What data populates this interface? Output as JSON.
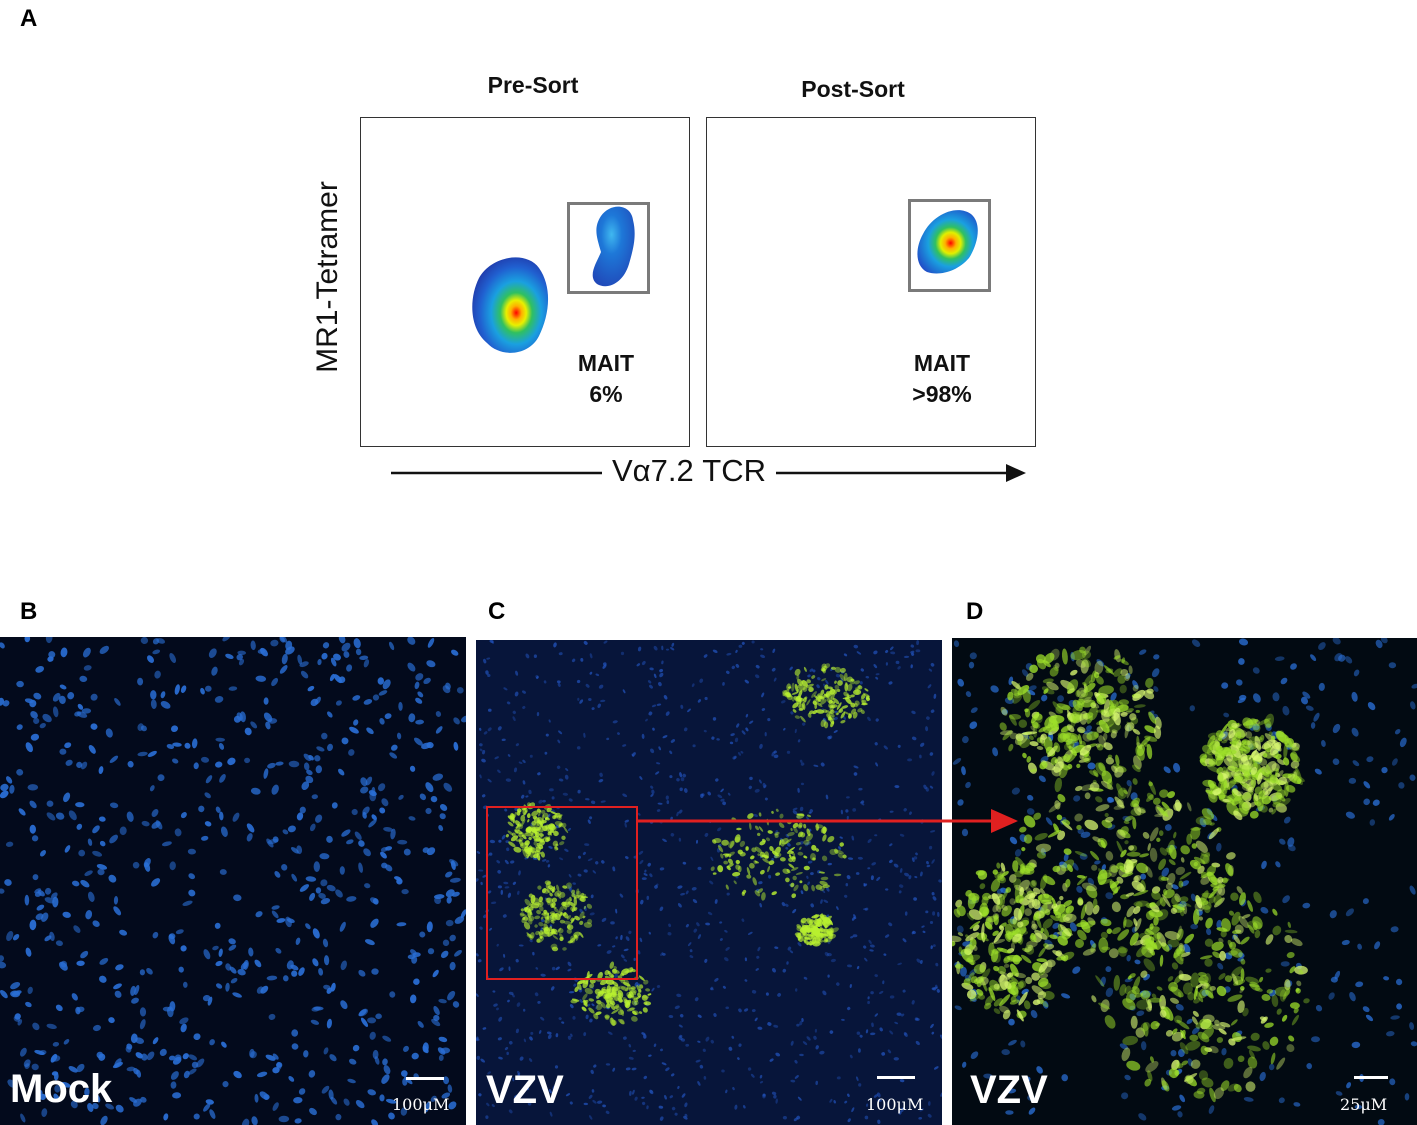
{
  "panel_a": {
    "letter": "A",
    "pre_sort": {
      "title": "Pre-Sort",
      "gate_label": "MAIT",
      "gate_value": "6%"
    },
    "post_sort": {
      "title": "Post-Sort",
      "gate_label": "MAIT",
      "gate_value": ">98%"
    },
    "y_axis_label": "MR1-Tetramer",
    "x_axis_label": "Vα7.2 TCR"
  },
  "panel_b": {
    "letter": "B",
    "label": "Mock",
    "scale": "100μM"
  },
  "panel_c": {
    "letter": "C",
    "label": "VZV",
    "scale": "100μM"
  },
  "panel_d": {
    "letter": "D",
    "label": "VZV",
    "scale": "25μM"
  },
  "colors": {
    "inset_box": "#e02020",
    "arrow": "#e02020",
    "nuclei": "#2a6fd6",
    "vzv_signal": "#b8f030",
    "gate": "#7a7a7a"
  }
}
